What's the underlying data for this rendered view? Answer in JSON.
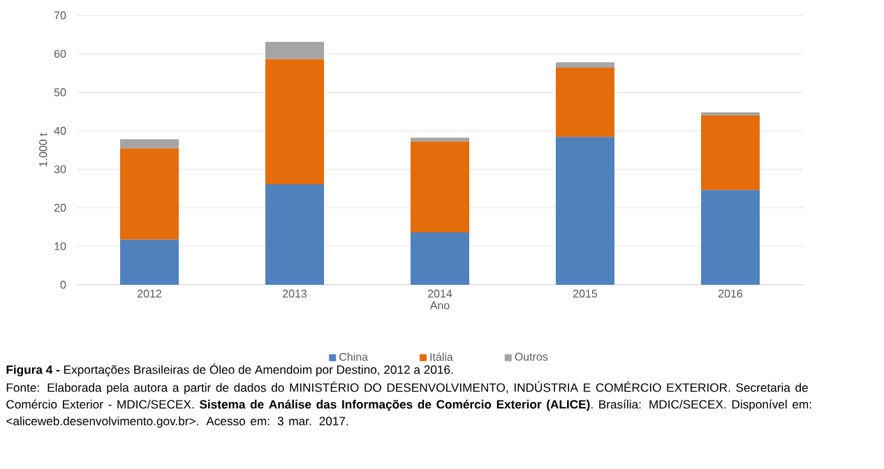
{
  "chart_data": {
    "type": "bar",
    "stacked": true,
    "title": "**Figura 4 -** Exportações Brasileiras de Óleo de Amendoim por Destino, 2012 a 2016.",
    "xlabel": "Ano",
    "ylabel": "1.000 t",
    "categories": [
      "2012",
      "2013",
      "2014",
      "2015",
      "2016"
    ],
    "series": [
      {
        "name": "China",
        "color": "#4f81bd",
        "values": [
          11.7,
          26.1,
          13.6,
          38.4,
          24.6
        ]
      },
      {
        "name": "Itália",
        "color": "#e46c0a",
        "values": [
          23.7,
          32.5,
          23.6,
          18.0,
          19.4
        ]
      },
      {
        "name": "Outros",
        "color": "#a5a5a5",
        "values": [
          2.4,
          4.5,
          1.0,
          1.4,
          0.8
        ]
      }
    ],
    "ylim": [
      0,
      70
    ],
    "yticks": [
      0,
      10,
      20,
      30,
      40,
      50,
      60,
      70
    ],
    "grid": "y",
    "legend": "bottom",
    "annotations": [
      "Fonte: Elaborada pela autora a partir de dados do MINISTÉRIO DO DESENVOLVIMENTO, INDÚSTRIA E COMÉRCIO EXTERIOR. Secretaria de Comércio Exterior - MDIC/SECEX. **Sistema de Análise das Informações de Comércio Exterior (ALICE)**. Brasília: MDIC/SECEX. Disponível em: <aliceweb.desenvolvimento.gov.br>. Acesso em: 3 mar. 2017."
    ]
  }
}
